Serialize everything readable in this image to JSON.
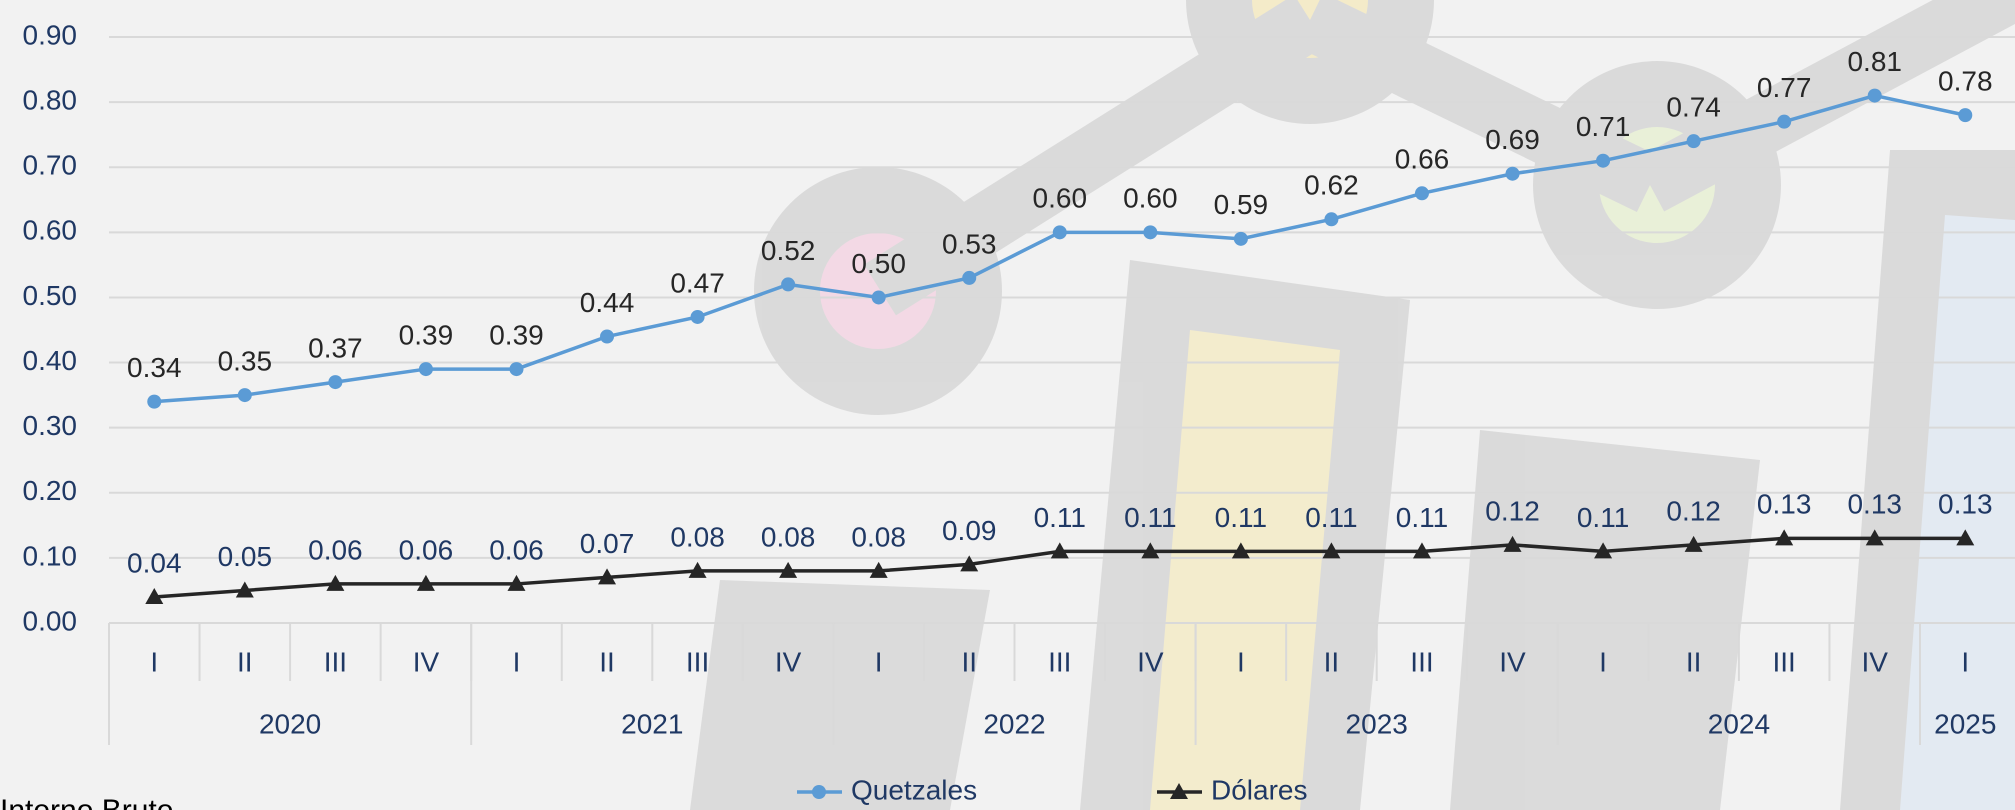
{
  "chart_data": {
    "type": "line",
    "categories": [
      "I",
      "II",
      "III",
      "IV",
      "I",
      "II",
      "III",
      "IV",
      "I",
      "II",
      "III",
      "IV",
      "I",
      "II",
      "III",
      "IV",
      "I",
      "II",
      "III",
      "IV",
      "I"
    ],
    "groups": [
      {
        "label": "2020",
        "count": 4
      },
      {
        "label": "2021",
        "count": 4
      },
      {
        "label": "2022",
        "count": 4
      },
      {
        "label": "2023",
        "count": 4
      },
      {
        "label": "2024",
        "count": 4
      },
      {
        "label": "2025",
        "count": 1
      }
    ],
    "series": [
      {
        "name": "Quetzales",
        "color": "#5b9bd5",
        "marker": "circle",
        "values": [
          0.34,
          0.35,
          0.37,
          0.39,
          0.39,
          0.44,
          0.47,
          0.52,
          0.5,
          0.53,
          0.6,
          0.6,
          0.59,
          0.62,
          0.66,
          0.69,
          0.71,
          0.74,
          0.77,
          0.81,
          0.78
        ],
        "value_labels": [
          "0.34",
          "0.35",
          "0.37",
          "0.39",
          "0.39",
          "0.44",
          "0.47",
          "0.52",
          "0.50",
          "0.53",
          "0.60",
          "0.60",
          "0.59",
          "0.62",
          "0.66",
          "0.69",
          "0.71",
          "0.74",
          "0.77",
          "0.81",
          "0.78"
        ]
      },
      {
        "name": "Dólares",
        "color": "#262626",
        "marker": "triangle",
        "values": [
          0.04,
          0.05,
          0.06,
          0.06,
          0.06,
          0.07,
          0.08,
          0.08,
          0.08,
          0.09,
          0.11,
          0.11,
          0.11,
          0.11,
          0.11,
          0.12,
          0.11,
          0.12,
          0.13,
          0.13,
          0.13
        ],
        "value_labels": [
          "0.04",
          "0.05",
          "0.06",
          "0.06",
          "0.06",
          "0.07",
          "0.08",
          "0.08",
          "0.08",
          "0.09",
          "0.11",
          "0.11",
          "0.11",
          "0.11",
          "0.11",
          "0.12",
          "0.11",
          "0.12",
          "0.13",
          "0.13",
          "0.13"
        ]
      }
    ],
    "ylim": [
      0,
      0.9
    ],
    "yticks": [
      {
        "value": 0,
        "label": "0.00"
      },
      {
        "value": 0.1,
        "label": "0.10"
      },
      {
        "value": 0.2,
        "label": "0.20"
      },
      {
        "value": 0.3,
        "label": "0.30"
      },
      {
        "value": 0.4,
        "label": "0.40"
      },
      {
        "value": 0.5,
        "label": "0.50"
      },
      {
        "value": 0.6,
        "label": "0.60"
      },
      {
        "value": 0.7,
        "label": "0.70"
      },
      {
        "value": 0.8,
        "label": "0.80"
      },
      {
        "value": 0.9,
        "label": "0.90"
      }
    ],
    "grid": true,
    "legend": "bottom",
    "footer_text": "Interno Bruto"
  }
}
